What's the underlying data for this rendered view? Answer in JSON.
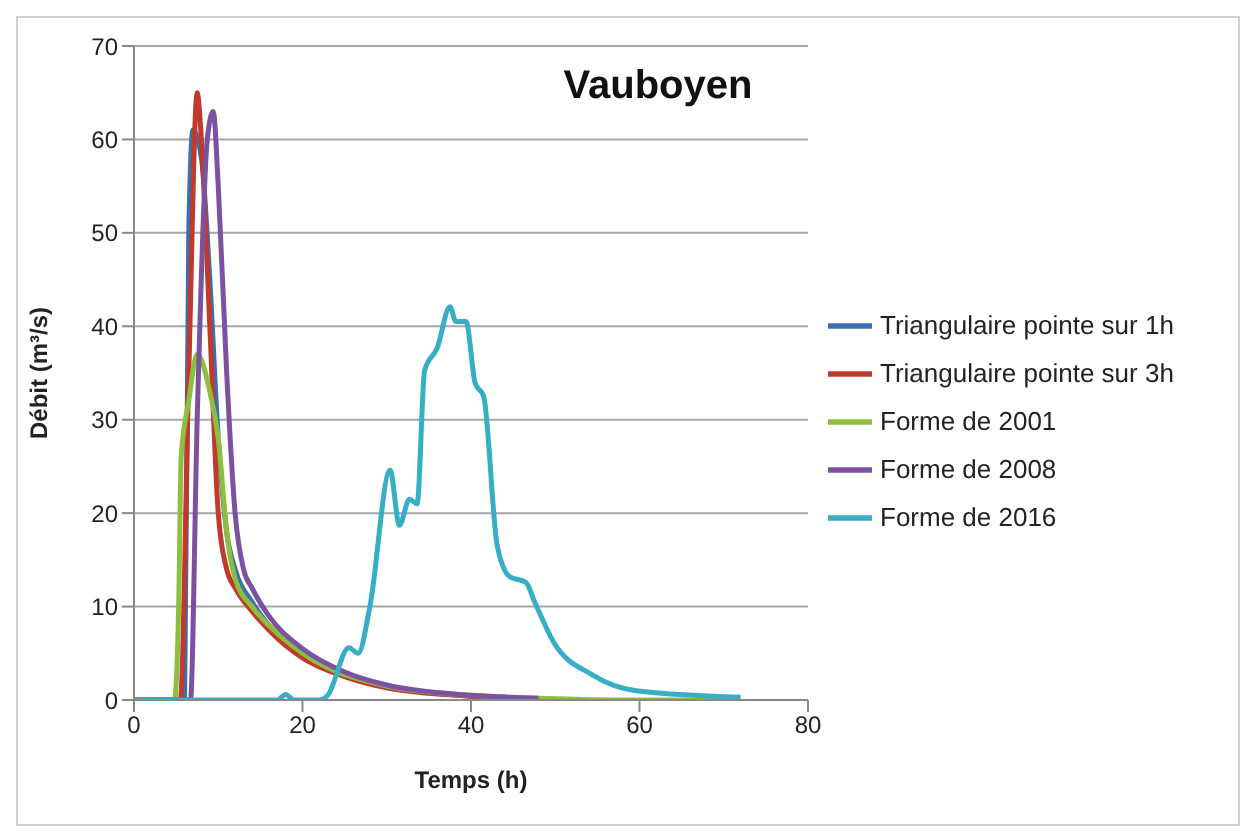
{
  "chart_data": {
    "type": "line",
    "title": "Vauboyen",
    "xlabel": "Temps (h)",
    "ylabel": "Débit (m³/s)",
    "xlim": [
      0,
      80
    ],
    "xticks": [
      0,
      20,
      40,
      60,
      80
    ],
    "ylim": [
      0,
      70
    ],
    "yticks": [
      0,
      10,
      20,
      30,
      40,
      50,
      60,
      70
    ],
    "grid": "y",
    "legend": "right",
    "marker": "none",
    "line_style": "solid",
    "series": [
      {
        "name": "Triangulaire pointe sur 1h",
        "color": "#3a6fb0",
        "x": [
          0,
          5.5,
          6,
          6.5,
          7,
          8,
          9,
          10,
          11,
          12,
          14,
          16,
          20,
          25,
          30,
          35,
          40,
          48
        ],
        "values": [
          0,
          0,
          0,
          50,
          61,
          58,
          45,
          28,
          18,
          14,
          10.5,
          8,
          5,
          2.8,
          1.5,
          0.8,
          0.4,
          0.1
        ]
      },
      {
        "name": "Triangulaire pointe sur 3h",
        "color": "#c0392b",
        "x": [
          0,
          5,
          5.5,
          6.5,
          7.5,
          8,
          9,
          10,
          11,
          12,
          14,
          16,
          20,
          25,
          30,
          40,
          48
        ],
        "values": [
          0,
          0,
          0,
          35,
          65,
          60,
          40,
          20,
          14,
          12,
          9.5,
          7.5,
          4.5,
          2.5,
          1.3,
          0.4,
          0.1
        ]
      },
      {
        "name": "Forme de 2001",
        "color": "#8cbf3f",
        "x": [
          0,
          4.8,
          5.3,
          5.6,
          6.5,
          7.5,
          9,
          10,
          11,
          12,
          14,
          16,
          20,
          30,
          40,
          48,
          60,
          72
        ],
        "values": [
          0,
          0,
          10,
          26,
          32,
          37,
          33,
          28,
          18,
          13,
          10,
          8,
          5,
          1.5,
          0.5,
          0.2,
          0,
          0
        ]
      },
      {
        "name": "Forme de 2008",
        "color": "#7b52a1",
        "x": [
          0,
          6.7,
          7.5,
          8.7,
          9.4,
          10,
          11,
          12,
          13,
          14,
          16,
          20,
          25,
          30,
          40,
          48
        ],
        "values": [
          0,
          0,
          30,
          60,
          63,
          55,
          35,
          20,
          14,
          12,
          9,
          5.5,
          3,
          1.6,
          0.5,
          0.2
        ]
      },
      {
        "name": "Forme de 2016",
        "color": "#35aec6",
        "x": [
          0,
          17,
          18,
          19,
          22,
          23,
          25.5,
          26.6,
          28,
          30.4,
          31.5,
          32.7,
          33.6,
          34.5,
          36,
          37.5,
          38.2,
          39.4,
          40.5,
          41.5,
          43.1,
          44.6,
          46.5,
          47.6,
          49.8,
          54.4,
          59.6,
          72
        ],
        "values": [
          0,
          0,
          0.6,
          0,
          0,
          0.5,
          5.6,
          5,
          10,
          24.6,
          18.7,
          21.5,
          21,
          35.3,
          37.7,
          42.1,
          40.5,
          40.5,
          33.9,
          32.5,
          16.6,
          13.2,
          12.6,
          10.4,
          6.2,
          2.7,
          1,
          0.3
        ]
      }
    ]
  }
}
